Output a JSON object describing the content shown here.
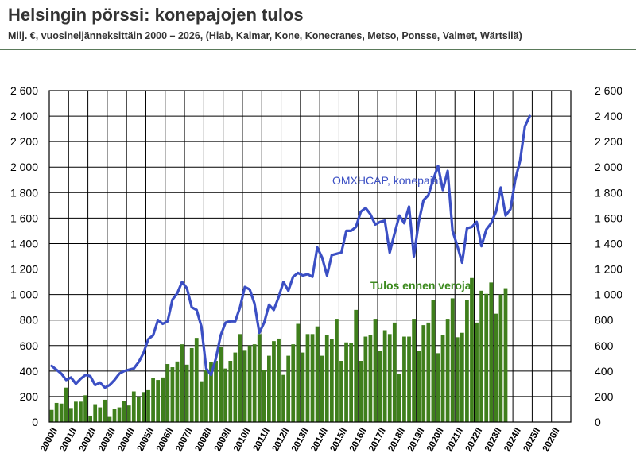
{
  "header": {
    "title": "Helsingin pörssi: konepajojen tulos",
    "subtitle": "Milj. €, vuosineljänneksittäin 2000 – 2026, (Hiab, Kalmar, Kone, Konecranes, Metso, Ponsse, Valmet, Wärtsilä)"
  },
  "colors": {
    "bar": "#3f7f1c",
    "line": "#3b4fc4",
    "grid": "#000000"
  },
  "chart_data": {
    "type": "bar",
    "title": "Helsingin pörssi: konepajojen tulos",
    "subtitle": "Milj. €, vuosineljänneksittäin 2000 – 2026, (Hiab, Kalmar, Kone, Konecranes, Metso, Ponsse, Valmet, Wärtsilä)",
    "ylim": [
      0,
      2600
    ],
    "yticks": [
      "0",
      "200",
      "400",
      "600",
      "800",
      "1 000",
      "1 200",
      "1 400",
      "1 600",
      "1 800",
      "2 000",
      "2 200",
      "2 400",
      "2 600"
    ],
    "yticks_values": [
      0,
      200,
      400,
      600,
      800,
      1000,
      1200,
      1400,
      1600,
      1800,
      2000,
      2200,
      2400,
      2600
    ],
    "x_tick_labels": [
      "2000/I",
      "2001/I",
      "2002/I",
      "2003/I",
      "2004/I",
      "2005/I",
      "2006/I",
      "2007/I",
      "2008/I",
      "2009/I",
      "2010/I",
      "2011/I",
      "2012/I",
      "2013/I",
      "2014/I",
      "2015/I",
      "2016/I",
      "2017/I",
      "2018/I",
      "2019/I",
      "2020/I",
      "2021/I",
      "2022/I",
      "2023/I",
      "2024/I",
      "2025/I",
      "2026/I"
    ],
    "grid": true,
    "series": [
      {
        "name": "Tulos ennen veroja",
        "type": "bar",
        "values": [
          95,
          150,
          145,
          270,
          110,
          160,
          160,
          210,
          50,
          140,
          115,
          175,
          40,
          100,
          115,
          165,
          130,
          240,
          200,
          235,
          250,
          345,
          330,
          350,
          455,
          430,
          475,
          610,
          450,
          580,
          660,
          320,
          405,
          470,
          480,
          590,
          420,
          480,
          545,
          690,
          565,
          600,
          610,
          690,
          410,
          520,
          635,
          655,
          370,
          520,
          610,
          770,
          545,
          690,
          690,
          750,
          520,
          680,
          650,
          810,
          480,
          625,
          620,
          880,
          480,
          670,
          680,
          810,
          560,
          720,
          690,
          780,
          380,
          670,
          670,
          810,
          560,
          760,
          780,
          960,
          540,
          680,
          810,
          970,
          665,
          700,
          960,
          1130,
          780,
          1030,
          1005,
          1095,
          850,
          1000,
          1050
        ]
      },
      {
        "name": "OMXHCAP, konepajat",
        "type": "line",
        "values": [
          440,
          410,
          380,
          330,
          350,
          300,
          340,
          370,
          360,
          290,
          310,
          270,
          290,
          330,
          380,
          400,
          410,
          420,
          470,
          540,
          650,
          680,
          800,
          770,
          790,
          960,
          1010,
          1100,
          1050,
          900,
          880,
          750,
          420,
          370,
          500,
          680,
          780,
          790,
          790,
          900,
          1060,
          1040,
          930,
          700,
          780,
          920,
          880,
          980,
          1100,
          1030,
          1140,
          1170,
          1150,
          1160,
          1140,
          1370,
          1290,
          1150,
          1310,
          1320,
          1330,
          1500,
          1500,
          1530,
          1650,
          1680,
          1630,
          1550,
          1570,
          1580,
          1330,
          1480,
          1620,
          1560,
          1690,
          1300,
          1570,
          1740,
          1780,
          1900,
          2010,
          1820,
          1970,
          1500,
          1380,
          1250,
          1520,
          1530,
          1570,
          1380,
          1510,
          1560,
          1650,
          1840,
          1620,
          1670,
          1900,
          2050,
          2320,
          2400
        ]
      }
    ],
    "annotations": [
      "OMXHCAP, konepajat",
      "Tulos ennen veroja"
    ]
  }
}
